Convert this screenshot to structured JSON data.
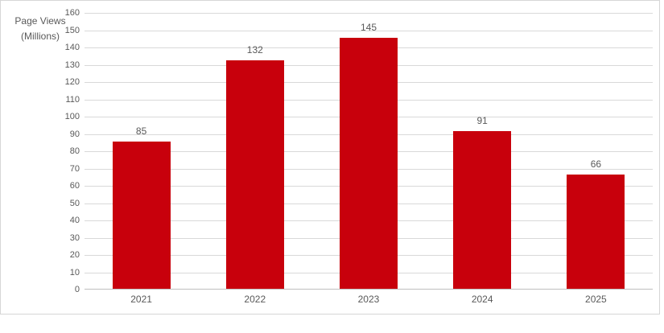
{
  "chart_data": {
    "type": "bar",
    "title": "",
    "ylabel": "Page Views (Millions)",
    "ylabel_lines": [
      "Page Views",
      "(Millions)"
    ],
    "xlabel": "",
    "categories": [
      "2021",
      "2022",
      "2023",
      "2024",
      "2025"
    ],
    "series": [
      {
        "name": "Page Views (Millions)",
        "values": [
          85,
          132,
          145,
          91,
          66
        ]
      }
    ],
    "data_labels": [
      "85",
      "132",
      "145",
      "91",
      "66"
    ],
    "ylim": [
      0,
      160
    ],
    "ytick_step": 10,
    "grid": true,
    "legend": "none",
    "colors": {
      "bar": "#c8000c",
      "gridline": "#d9d9d9",
      "axis_line": "#bfbfbf",
      "text": "#595959",
      "frame_border": "#d6d6d6",
      "background": "#ffffff"
    }
  }
}
